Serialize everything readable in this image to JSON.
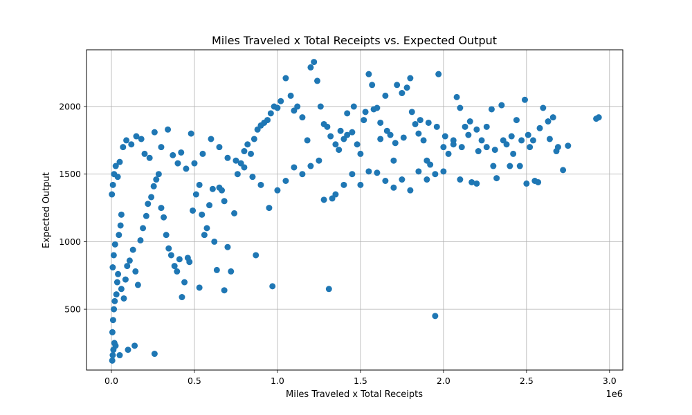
{
  "chart_data": {
    "type": "scatter",
    "title": "Miles Traveled x Total Receipts vs. Expected Output",
    "xlabel": "Miles Traveled x Total Receipts",
    "ylabel": "Expected Output",
    "x_offset_label": "1e6",
    "xlim": [
      -150000,
      3080000
    ],
    "ylim": [
      50,
      2420
    ],
    "xticks": [
      0,
      500000,
      1000000,
      1500000,
      2000000,
      2500000,
      3000000
    ],
    "xtick_labels": [
      "0.0",
      "0.5",
      "1.0",
      "1.5",
      "2.0",
      "2.5",
      "3.0"
    ],
    "yticks": [
      500,
      1000,
      1500,
      2000
    ],
    "ytick_labels": [
      "500",
      "1000",
      "1500",
      "2000"
    ],
    "grid": true,
    "marker_color": "#1f77b4",
    "points": [
      [
        5000,
        120
      ],
      [
        8000,
        160
      ],
      [
        12000,
        200
      ],
      [
        18000,
        250
      ],
      [
        25000,
        230
      ],
      [
        6000,
        330
      ],
      [
        10000,
        420
      ],
      [
        15000,
        500
      ],
      [
        20000,
        560
      ],
      [
        30000,
        610
      ],
      [
        35000,
        700
      ],
      [
        40000,
        760
      ],
      [
        8000,
        810
      ],
      [
        14000,
        900
      ],
      [
        22000,
        980
      ],
      [
        45000,
        1050
      ],
      [
        55000,
        1120
      ],
      [
        60000,
        1200
      ],
      [
        3000,
        1350
      ],
      [
        9000,
        1420
      ],
      [
        16000,
        1500
      ],
      [
        26000,
        1560
      ],
      [
        38000,
        1480
      ],
      [
        50000,
        1590
      ],
      [
        70000,
        1700
      ],
      [
        90000,
        1750
      ],
      [
        120000,
        1720
      ],
      [
        150000,
        1780
      ],
      [
        180000,
        1760
      ],
      [
        200000,
        1650
      ],
      [
        230000,
        1620
      ],
      [
        260000,
        1810
      ],
      [
        300000,
        1700
      ],
      [
        340000,
        1830
      ],
      [
        370000,
        1640
      ],
      [
        400000,
        1580
      ],
      [
        420000,
        1660
      ],
      [
        450000,
        1540
      ],
      [
        480000,
        1800
      ],
      [
        60000,
        650
      ],
      [
        75000,
        580
      ],
      [
        85000,
        720
      ],
      [
        95000,
        820
      ],
      [
        110000,
        860
      ],
      [
        130000,
        940
      ],
      [
        145000,
        780
      ],
      [
        160000,
        680
      ],
      [
        175000,
        1010
      ],
      [
        190000,
        1100
      ],
      [
        210000,
        1190
      ],
      [
        220000,
        1280
      ],
      [
        240000,
        1330
      ],
      [
        255000,
        1410
      ],
      [
        270000,
        1460
      ],
      [
        285000,
        1500
      ],
      [
        300000,
        1250
      ],
      [
        315000,
        1180
      ],
      [
        330000,
        1050
      ],
      [
        345000,
        950
      ],
      [
        360000,
        900
      ],
      [
        380000,
        820
      ],
      [
        395000,
        780
      ],
      [
        410000,
        870
      ],
      [
        425000,
        590
      ],
      [
        440000,
        700
      ],
      [
        460000,
        880
      ],
      [
        470000,
        850
      ],
      [
        490000,
        1230
      ],
      [
        510000,
        1350
      ],
      [
        530000,
        1420
      ],
      [
        545000,
        1200
      ],
      [
        560000,
        1050
      ],
      [
        575000,
        1100
      ],
      [
        590000,
        1270
      ],
      [
        610000,
        1390
      ],
      [
        620000,
        1000
      ],
      [
        635000,
        790
      ],
      [
        650000,
        1400
      ],
      [
        665000,
        1380
      ],
      [
        680000,
        1300
      ],
      [
        700000,
        960
      ],
      [
        720000,
        780
      ],
      [
        740000,
        1210
      ],
      [
        760000,
        1500
      ],
      [
        780000,
        1580
      ],
      [
        800000,
        1670
      ],
      [
        820000,
        1720
      ],
      [
        840000,
        1650
      ],
      [
        860000,
        1760
      ],
      [
        880000,
        1830
      ],
      [
        900000,
        1860
      ],
      [
        920000,
        1880
      ],
      [
        940000,
        1900
      ],
      [
        960000,
        1950
      ],
      [
        980000,
        2000
      ],
      [
        1000000,
        1990
      ],
      [
        1020000,
        2040
      ],
      [
        1050000,
        2210
      ],
      [
        1080000,
        2080
      ],
      [
        1100000,
        1970
      ],
      [
        1120000,
        2000
      ],
      [
        1150000,
        1920
      ],
      [
        1180000,
        1750
      ],
      [
        1200000,
        2290
      ],
      [
        1220000,
        2330
      ],
      [
        1240000,
        2190
      ],
      [
        1260000,
        2000
      ],
      [
        1280000,
        1870
      ],
      [
        1300000,
        1850
      ],
      [
        1320000,
        1780
      ],
      [
        1350000,
        1720
      ],
      [
        1370000,
        1680
      ],
      [
        1400000,
        1760
      ],
      [
        1420000,
        1790
      ],
      [
        1450000,
        1810
      ],
      [
        1480000,
        1720
      ],
      [
        1500000,
        1650
      ],
      [
        1520000,
        1900
      ],
      [
        1550000,
        2240
      ],
      [
        1570000,
        2160
      ],
      [
        1600000,
        1990
      ],
      [
        1620000,
        1880
      ],
      [
        1650000,
        2080
      ],
      [
        1680000,
        1790
      ],
      [
        1700000,
        1600
      ],
      [
        1720000,
        2160
      ],
      [
        1750000,
        2100
      ],
      [
        1780000,
        2140
      ],
      [
        1800000,
        2210
      ],
      [
        1830000,
        1870
      ],
      [
        1850000,
        1800
      ],
      [
        1880000,
        1750
      ],
      [
        1900000,
        1600
      ],
      [
        1920000,
        1570
      ],
      [
        1950000,
        1500
      ],
      [
        1970000,
        2240
      ],
      [
        2000000,
        1700
      ],
      [
        2030000,
        1650
      ],
      [
        2060000,
        1750
      ],
      [
        2080000,
        2070
      ],
      [
        2100000,
        1990
      ],
      [
        2130000,
        1850
      ],
      [
        2150000,
        1790
      ],
      [
        2170000,
        1440
      ],
      [
        2200000,
        1830
      ],
      [
        2230000,
        1750
      ],
      [
        2260000,
        1700
      ],
      [
        2290000,
        1980
      ],
      [
        2320000,
        1470
      ],
      [
        2350000,
        2010
      ],
      [
        2380000,
        1720
      ],
      [
        2410000,
        1780
      ],
      [
        2440000,
        1900
      ],
      [
        2470000,
        1750
      ],
      [
        2490000,
        2050
      ],
      [
        2510000,
        1790
      ],
      [
        2540000,
        1750
      ],
      [
        2570000,
        1440
      ],
      [
        2600000,
        1990
      ],
      [
        2630000,
        1890
      ],
      [
        2660000,
        1920
      ],
      [
        2690000,
        1700
      ],
      [
        2720000,
        1530
      ],
      [
        2750000,
        1710
      ],
      [
        2920000,
        1910
      ],
      [
        2935000,
        1920
      ],
      [
        1950000,
        450
      ],
      [
        1310000,
        650
      ],
      [
        970000,
        670
      ],
      [
        870000,
        900
      ],
      [
        680000,
        640
      ],
      [
        530000,
        660
      ],
      [
        260000,
        170
      ],
      [
        140000,
        230
      ],
      [
        100000,
        200
      ],
      [
        50000,
        160
      ],
      [
        1200000,
        1560
      ],
      [
        1250000,
        1600
      ],
      [
        1150000,
        1500
      ],
      [
        1100000,
        1550
      ],
      [
        1050000,
        1450
      ],
      [
        1000000,
        1380
      ],
      [
        950000,
        1250
      ],
      [
        900000,
        1420
      ],
      [
        850000,
        1480
      ],
      [
        800000,
        1550
      ],
      [
        750000,
        1600
      ],
      [
        700000,
        1620
      ],
      [
        650000,
        1700
      ],
      [
        600000,
        1760
      ],
      [
        550000,
        1650
      ],
      [
        500000,
        1580
      ],
      [
        1350000,
        1350
      ],
      [
        1400000,
        1420
      ],
      [
        1450000,
        1500
      ],
      [
        1500000,
        1420
      ],
      [
        1550000,
        1520
      ],
      [
        1600000,
        1510
      ],
      [
        1650000,
        1450
      ],
      [
        1700000,
        1400
      ],
      [
        1750000,
        1460
      ],
      [
        1800000,
        1380
      ],
      [
        1850000,
        1520
      ],
      [
        1900000,
        1460
      ],
      [
        2000000,
        1520
      ],
      [
        2100000,
        1460
      ],
      [
        2200000,
        1430
      ],
      [
        2300000,
        1560
      ],
      [
        2400000,
        1560
      ],
      [
        2500000,
        1430
      ],
      [
        2550000,
        1450
      ],
      [
        1280000,
        1310
      ],
      [
        1330000,
        1320
      ],
      [
        1380000,
        1820
      ],
      [
        1420000,
        1950
      ],
      [
        1460000,
        2000
      ],
      [
        1530000,
        1960
      ],
      [
        1580000,
        1980
      ],
      [
        1620000,
        1760
      ],
      [
        1660000,
        1820
      ],
      [
        1710000,
        1730
      ],
      [
        1760000,
        1770
      ],
      [
        1810000,
        1960
      ],
      [
        1860000,
        1900
      ],
      [
        1910000,
        1880
      ],
      [
        1960000,
        1850
      ],
      [
        2010000,
        1780
      ],
      [
        2060000,
        1720
      ],
      [
        2110000,
        1700
      ],
      [
        2160000,
        1890
      ],
      [
        2210000,
        1670
      ],
      [
        2260000,
        1850
      ],
      [
        2310000,
        1680
      ],
      [
        2360000,
        1750
      ],
      [
        2420000,
        1650
      ],
      [
        2460000,
        1560
      ],
      [
        2520000,
        1700
      ],
      [
        2580000,
        1840
      ],
      [
        2640000,
        1760
      ],
      [
        2680000,
        1670
      ]
    ]
  }
}
